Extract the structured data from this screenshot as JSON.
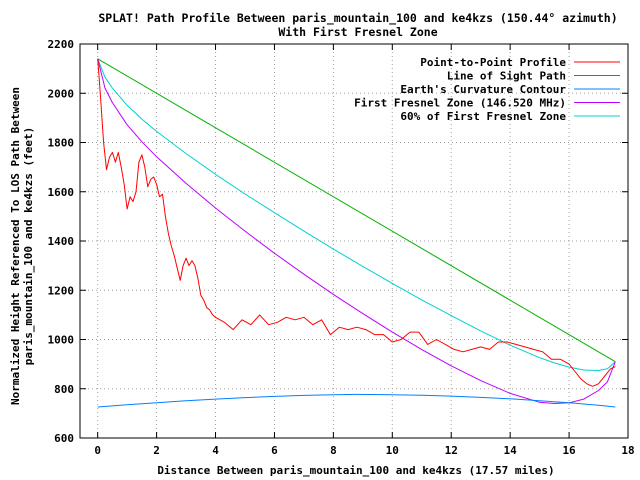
{
  "chart_data": {
    "type": "line",
    "title": "SPLAT! Path Profile Between paris_mountain_100 and ke4kzs (150.44° azimuth)",
    "subtitle": "With First Fresnel Zone",
    "xlabel": "Distance Between paris_mountain_100 and ke4kzs (17.57 miles)",
    "ylabel_lines": [
      "Normalized Height Referenced To LOS Path Between",
      "paris_mountain_100 and ke4kzs (feet)"
    ],
    "xlim": [
      -0.6,
      18
    ],
    "ylim": [
      600,
      2200
    ],
    "x_ticks": [
      "0",
      "2",
      "4",
      "6",
      "8",
      "10",
      "12",
      "14",
      "16",
      "18"
    ],
    "y_ticks": [
      "600",
      "800",
      "1000",
      "1200",
      "1400",
      "1600",
      "1800",
      "2000",
      "2200"
    ],
    "grid": true,
    "legend_position": "top-right",
    "series": [
      {
        "name": "Point-to-Point Profile",
        "color": "#ff0000",
        "x": [
          0,
          0.05,
          0.1,
          0.2,
          0.3,
          0.4,
          0.5,
          0.6,
          0.7,
          0.8,
          0.9,
          1.0,
          1.1,
          1.2,
          1.3,
          1.4,
          1.5,
          1.6,
          1.7,
          1.8,
          1.9,
          2.0,
          2.1,
          2.2,
          2.3,
          2.4,
          2.5,
          2.6,
          2.7,
          2.8,
          2.9,
          3.0,
          3.1,
          3.2,
          3.3,
          3.4,
          3.5,
          3.6,
          3.7,
          3.8,
          3.9,
          4.0,
          4.3,
          4.6,
          4.9,
          5.2,
          5.5,
          5.8,
          6.1,
          6.4,
          6.7,
          7.0,
          7.3,
          7.6,
          7.9,
          8.2,
          8.5,
          8.8,
          9.1,
          9.4,
          9.7,
          10.0,
          10.3,
          10.6,
          10.9,
          11.2,
          11.5,
          11.8,
          12.1,
          12.4,
          12.7,
          13.0,
          13.3,
          13.6,
          13.9,
          14.2,
          14.5,
          14.8,
          15.1,
          15.4,
          15.7,
          16.0,
          16.2,
          16.4,
          16.6,
          16.8,
          17.0,
          17.2,
          17.4,
          17.57
        ],
        "y": [
          2140,
          2060,
          1980,
          1800,
          1690,
          1740,
          1760,
          1720,
          1760,
          1700,
          1630,
          1530,
          1580,
          1560,
          1600,
          1720,
          1750,
          1700,
          1620,
          1650,
          1660,
          1630,
          1580,
          1590,
          1500,
          1430,
          1380,
          1340,
          1290,
          1240,
          1300,
          1330,
          1300,
          1320,
          1300,
          1250,
          1180,
          1160,
          1130,
          1120,
          1100,
          1090,
          1070,
          1040,
          1080,
          1060,
          1100,
          1060,
          1070,
          1090,
          1080,
          1090,
          1060,
          1080,
          1020,
          1050,
          1040,
          1050,
          1040,
          1020,
          1020,
          990,
          1000,
          1030,
          1030,
          980,
          1000,
          980,
          960,
          950,
          960,
          970,
          960,
          990,
          990,
          980,
          970,
          960,
          950,
          920,
          920,
          900,
          870,
          840,
          820,
          810,
          820,
          850,
          880,
          890
        ]
      },
      {
        "name": "Line of Sight Path",
        "color": "#00b000",
        "x": [
          0,
          17.57
        ],
        "y": [
          2140,
          910
        ]
      },
      {
        "name": "Earth's Curvature Contour",
        "color": "#0080ff",
        "x": [
          0,
          1,
          2,
          3,
          4,
          5,
          6,
          7,
          8,
          8.785,
          10,
          11,
          12,
          13,
          14,
          15,
          16,
          17,
          17.57
        ],
        "y": [
          726,
          735,
          743,
          751,
          758,
          764,
          769,
          773,
          776,
          777,
          776,
          774,
          770,
          765,
          759,
          751,
          743,
          733,
          726
        ]
      },
      {
        "name": "First Fresnel Zone (146.520 MHz)",
        "color": "#c000ff",
        "x": [
          0,
          0.25,
          0.5,
          1,
          1.5,
          2,
          3,
          4,
          5,
          6,
          7,
          8,
          9,
          10,
          11,
          12,
          13,
          14,
          15,
          15.5,
          16,
          16.5,
          17,
          17.3,
          17.57
        ],
        "y": [
          2140,
          2021,
          1962,
          1872,
          1803,
          1742,
          1634,
          1534,
          1440,
          1350,
          1265,
          1183,
          1105,
          1030,
          959,
          893,
          833,
          781,
          745,
          740,
          743,
          758,
          793,
          828,
          910
        ]
      },
      {
        "name": "60% of First Fresnel Zone",
        "color": "#00d0d0",
        "x": [
          0,
          0.25,
          0.5,
          1,
          1.5,
          2,
          3,
          4,
          5,
          6,
          7,
          8,
          9,
          10,
          11,
          12,
          13,
          14,
          15,
          15.5,
          16,
          16.5,
          17,
          17.3,
          17.57
        ],
        "y": [
          2140,
          2065,
          2021,
          1951,
          1895,
          1845,
          1755,
          1671,
          1591,
          1515,
          1440,
          1367,
          1297,
          1228,
          1161,
          1097,
          1035,
          977,
          926,
          905,
          888,
          876,
          874,
          881,
          910
        ]
      }
    ]
  }
}
